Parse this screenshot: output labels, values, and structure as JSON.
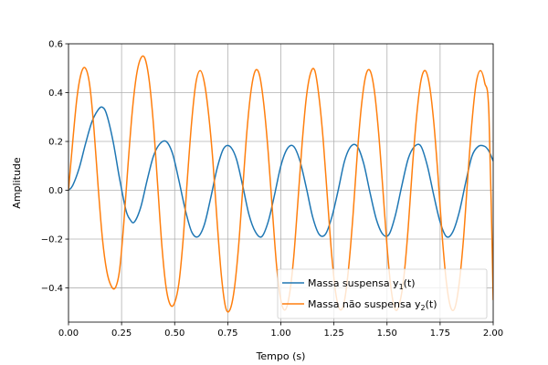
{
  "chart_data": {
    "type": "line",
    "title": "",
    "xlabel": "Tempo (s)",
    "ylabel": "Amplitude",
    "xlim": [
      0.0,
      2.0
    ],
    "ylim": [
      -0.54,
      0.6
    ],
    "grid": true,
    "legend": "lower-right",
    "x_ticks": [
      0.0,
      0.25,
      0.5,
      0.75,
      1.0,
      1.25,
      1.5,
      1.75,
      2.0
    ],
    "x_tick_labels": [
      "0.00",
      "0.25",
      "0.50",
      "0.75",
      "1.00",
      "1.25",
      "1.50",
      "1.75",
      "2.00"
    ],
    "y_ticks": [
      -0.4,
      -0.2,
      0.0,
      0.2,
      0.4,
      0.6
    ],
    "y_tick_labels": [
      "−0.4",
      "−0.2",
      "0.0",
      "0.2",
      "0.4",
      "0.6"
    ],
    "series": [
      {
        "name": "Massa suspensa y",
        "name_sub": "1",
        "name_tail": "(t)",
        "color": "#1f77b4",
        "x": [
          0,
          0.02,
          0.05,
          0.08,
          0.11,
          0.14,
          0.16,
          0.18,
          0.21,
          0.24,
          0.27,
          0.29,
          0.31,
          0.34,
          0.37,
          0.4,
          0.43,
          0.46,
          0.49,
          0.52,
          0.55,
          0.58,
          0.61,
          0.64,
          0.67,
          0.7,
          0.73,
          0.76,
          0.79,
          0.82,
          0.85,
          0.88,
          0.91,
          0.94,
          0.97,
          1.0,
          1.03,
          1.06,
          1.09,
          1.12,
          1.15,
          1.18,
          1.21,
          1.24,
          1.27,
          1.3,
          1.33,
          1.36,
          1.39,
          1.42,
          1.45,
          1.48,
          1.51,
          1.54,
          1.57,
          1.6,
          1.63,
          1.66,
          1.69,
          1.72,
          1.75,
          1.78,
          1.81,
          1.84,
          1.87,
          1.9,
          1.93,
          1.96,
          1.98,
          2.0
        ],
        "y": [
          0,
          0.02,
          0.09,
          0.19,
          0.28,
          0.33,
          0.34,
          0.31,
          0.2,
          0.05,
          -0.08,
          -0.12,
          -0.13,
          -0.07,
          0.04,
          0.14,
          0.19,
          0.2,
          0.15,
          0.04,
          -0.08,
          -0.17,
          -0.19,
          -0.14,
          -0.03,
          0.09,
          0.17,
          0.18,
          0.13,
          0.02,
          -0.1,
          -0.17,
          -0.19,
          -0.13,
          -0.02,
          0.1,
          0.17,
          0.18,
          0.12,
          0.01,
          -0.11,
          -0.18,
          -0.18,
          -0.11,
          0.0,
          0.12,
          0.18,
          0.18,
          0.11,
          -0.01,
          -0.12,
          -0.18,
          -0.18,
          -0.1,
          0.02,
          0.13,
          0.18,
          0.18,
          0.1,
          -0.02,
          -0.13,
          -0.19,
          -0.17,
          -0.09,
          0.03,
          0.14,
          0.18,
          0.18,
          0.16,
          0.12
        ]
      },
      {
        "name": "Massa não suspensa y",
        "name_sub": "2",
        "name_tail": "(t)",
        "color": "#ff7f0e",
        "x": [
          0,
          0.02,
          0.04,
          0.06,
          0.08,
          0.1,
          0.12,
          0.14,
          0.16,
          0.18,
          0.2,
          0.22,
          0.24,
          0.26,
          0.28,
          0.3,
          0.32,
          0.34,
          0.36,
          0.38,
          0.4,
          0.42,
          0.44,
          0.46,
          0.48,
          0.5,
          0.52,
          0.54,
          0.56,
          0.58,
          0.6,
          0.62,
          0.64,
          0.66,
          0.68,
          0.7,
          0.72,
          0.74,
          0.76,
          0.78,
          0.8,
          0.82,
          0.84,
          0.86,
          0.88,
          0.9,
          0.92,
          0.94,
          0.96,
          0.98,
          1.0,
          1.02,
          1.04,
          1.06,
          1.08,
          1.1,
          1.12,
          1.14,
          1.16,
          1.18,
          1.2,
          1.22,
          1.24,
          1.26,
          1.28,
          1.3,
          1.32,
          1.34,
          1.36,
          1.38,
          1.4,
          1.42,
          1.44,
          1.46,
          1.48,
          1.5,
          1.52,
          1.54,
          1.56,
          1.58,
          1.6,
          1.62,
          1.64,
          1.66,
          1.68,
          1.7,
          1.72,
          1.74,
          1.76,
          1.78,
          1.8,
          1.82,
          1.84,
          1.86,
          1.88,
          1.9,
          1.92,
          1.94,
          1.96,
          1.98,
          2.0
        ],
        "y": [
          0,
          0.2,
          0.38,
          0.48,
          0.5,
          0.43,
          0.25,
          0.01,
          -0.2,
          -0.33,
          -0.39,
          -0.4,
          -0.33,
          -0.14,
          0.1,
          0.32,
          0.47,
          0.54,
          0.54,
          0.45,
          0.27,
          0.02,
          -0.23,
          -0.4,
          -0.47,
          -0.46,
          -0.38,
          -0.2,
          0.05,
          0.28,
          0.44,
          0.49,
          0.44,
          0.31,
          0.12,
          -0.13,
          -0.35,
          -0.48,
          -0.49,
          -0.41,
          -0.24,
          0.0,
          0.24,
          0.41,
          0.49,
          0.47,
          0.35,
          0.16,
          -0.08,
          -0.31,
          -0.45,
          -0.49,
          -0.43,
          -0.28,
          -0.05,
          0.19,
          0.38,
          0.48,
          0.49,
          0.38,
          0.2,
          -0.04,
          -0.27,
          -0.43,
          -0.49,
          -0.45,
          -0.31,
          -0.1,
          0.15,
          0.35,
          0.47,
          0.49,
          0.41,
          0.24,
          0.01,
          -0.23,
          -0.41,
          -0.49,
          -0.46,
          -0.35,
          -0.15,
          0.1,
          0.31,
          0.45,
          0.49,
          0.43,
          0.28,
          0.06,
          -0.19,
          -0.38,
          -0.48,
          -0.48,
          -0.38,
          -0.2,
          0.05,
          0.28,
          0.44,
          0.49,
          0.44,
          0.31,
          -0.45
        ]
      }
    ]
  }
}
